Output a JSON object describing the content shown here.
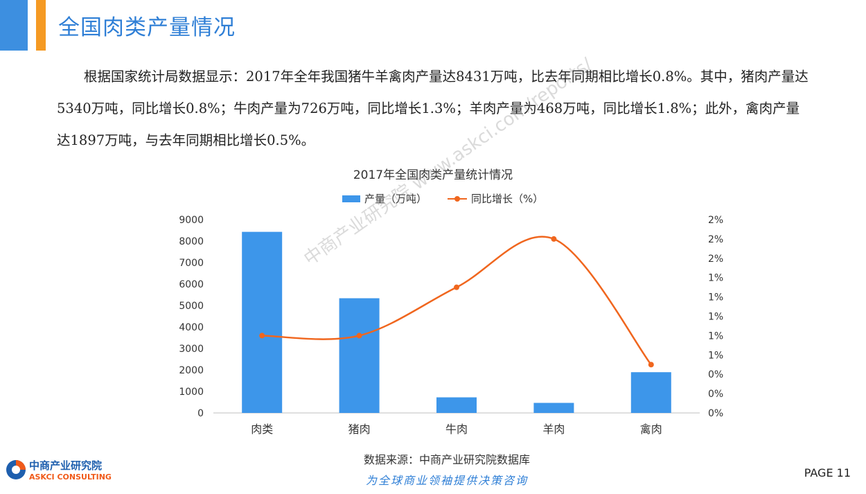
{
  "page": {
    "title": "全国肉类产量情况",
    "paragraph": "根据国家统计局数据显示：2017年全年我国猪牛羊禽肉产量达8431万吨，比去年同期相比增长0.8%。其中，猪肉产量达5340万吨，同比增长0.8%；牛肉产量为726万吨，同比增长1.3%；羊肉产量为468万吨，同比增长1.8%；此外，禽肉产量达1897万吨，与去年同期相比增长0.5%。",
    "source": "数据来源：中商产业研究院数据库",
    "slogan": "为全球商业领袖提供决策咨询",
    "page_number": "PAGE  11",
    "watermark": "中商产业研究院 www.askci.com/reports/"
  },
  "logo": {
    "name_cn": "中商产业研究院",
    "name_en": "ASKCI CONSULTING"
  },
  "colors": {
    "accent_blue": "#2f7fd6",
    "bar": "#3d96ea",
    "line": "#f0661e",
    "accent_orange": "#f59a23"
  },
  "chart_data": {
    "type": "bar",
    "title": "2017年全国肉类产量统计情况",
    "categories": [
      "肉类",
      "猪肉",
      "牛肉",
      "羊肉",
      "禽肉"
    ],
    "series": [
      {
        "name": "产量（万吨）",
        "type": "bar",
        "axis": "left",
        "values": [
          8431,
          5340,
          726,
          468,
          1897
        ]
      },
      {
        "name": "同比增长（%）",
        "type": "line",
        "axis": "right",
        "values": [
          0.8,
          0.8,
          1.3,
          1.8,
          0.5
        ]
      }
    ],
    "y_left": {
      "ticks": [
        "0",
        "1000",
        "2000",
        "3000",
        "4000",
        "5000",
        "6000",
        "7000",
        "8000",
        "9000"
      ],
      "ylim": [
        0,
        9000
      ]
    },
    "y_right": {
      "ticks": [
        "0%",
        "0%",
        "0%",
        "1%",
        "1%",
        "1%",
        "1%",
        "1%",
        "2%",
        "2%",
        "2%"
      ],
      "ylim": [
        0,
        2.0
      ]
    },
    "legend_position": "top",
    "grid": false
  }
}
